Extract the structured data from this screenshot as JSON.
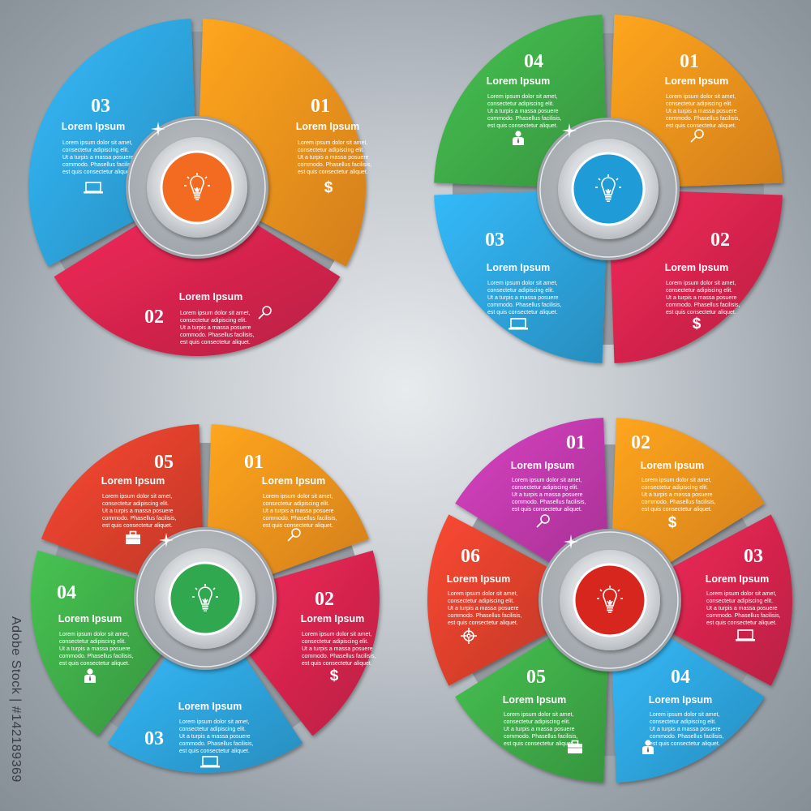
{
  "colors": {
    "orange": "#f7941d",
    "pink": "#d8254f",
    "blue": "#2ea6df",
    "green": "#3fae49",
    "red": "#e0412d",
    "purple": "#c23aad",
    "hub_orange": "#f26b21",
    "hub_blue": "#1f9bd7",
    "hub_green": "#2fa84f",
    "hub_red": "#d7261e"
  },
  "diagrams": [
    {
      "hub_icon": "light-bulb-icon",
      "segments": [
        {
          "number": "01",
          "title": "Lorem Ipsum",
          "text": [
            "Lorem ipsum dolor sit amet,",
            "consectetur adipiscing elit.",
            "Ut a turpis a massa posuere",
            "commodo. Phasellus facilisis,",
            "est quis consectetur aliquet."
          ],
          "icon": "dollar-icon",
          "color": "orange"
        },
        {
          "number": "02",
          "title": "Lorem Ipsum",
          "text": [
            "Lorem ipsum dolor sit amet,",
            "consectetur adipiscing elit.",
            "Ut a turpis a massa posuere",
            "commodo. Phasellus facilisis,",
            "est quis consectetur aliquet."
          ],
          "icon": "magnifier-icon",
          "color": "pink"
        },
        {
          "number": "03",
          "title": "Lorem Ipsum",
          "text": [
            "Lorem ipsum dolor sit amet,",
            "consectetur adipiscing elit.",
            "Ut a turpis a massa posuere",
            "commodo. Phasellus facilisis,",
            "est quis consectetur aliquet."
          ],
          "icon": "laptop-icon",
          "color": "blue"
        }
      ]
    },
    {
      "hub_icon": "light-bulb-icon",
      "segments": [
        {
          "number": "01",
          "title": "Lorem Ipsum",
          "text": [
            "Lorem ipsum dolor sit amet,",
            "consectetur adipiscing elit.",
            "Ut a turpis a massa posuere",
            "commodo. Phasellus facilisis,",
            "est quis consectetur aliquet."
          ],
          "icon": "magnifier-icon",
          "color": "orange"
        },
        {
          "number": "02",
          "title": "Lorem Ipsum",
          "text": [
            "Lorem ipsum dolor sit amet,",
            "consectetur adipiscing elit.",
            "Ut a turpis a massa posuere",
            "commodo. Phasellus facilisis,",
            "est quis consectetur aliquet."
          ],
          "icon": "dollar-icon",
          "color": "pink"
        },
        {
          "number": "03",
          "title": "Lorem Ipsum",
          "text": [
            "Lorem ipsum dolor sit amet,",
            "consectetur adipiscing elit.",
            "Ut a turpis a massa posuere",
            "commodo. Phasellus facilisis,",
            "est quis consectetur aliquet."
          ],
          "icon": "laptop-icon",
          "color": "blue"
        },
        {
          "number": "04",
          "title": "Lorem Ipsum",
          "text": [
            "Lorem ipsum dolor sit amet,",
            "consectetur adipiscing elit.",
            "Ut a turpis a massa posuere",
            "commodo. Phasellus facilisis,",
            "est quis consectetur aliquet."
          ],
          "icon": "person-icon",
          "color": "green"
        }
      ]
    },
    {
      "hub_icon": "light-bulb-icon",
      "segments": [
        {
          "number": "01",
          "title": "Lorem Ipsum",
          "text": [
            "Lorem ipsum dolor sit amet,",
            "consectetur adipiscing elit.",
            "Ut a turpis a massa posuere",
            "commodo. Phasellus facilisis,",
            "est quis consectetur aliquet."
          ],
          "icon": "magnifier-icon",
          "color": "orange"
        },
        {
          "number": "02",
          "title": "Lorem Ipsum",
          "text": [
            "Lorem ipsum dolor sit amet,",
            "consectetur adipiscing elit.",
            "Ut a turpis a massa posuere",
            "commodo. Phasellus facilisis,",
            "est quis consectetur aliquet."
          ],
          "icon": "dollar-icon",
          "color": "pink"
        },
        {
          "number": "03",
          "title": "Lorem Ipsum",
          "text": [
            "Lorem ipsum dolor sit amet,",
            "consectetur adipiscing elit.",
            "Ut a turpis a massa posuere",
            "commodo. Phasellus facilisis,",
            "est quis consectetur aliquet."
          ],
          "icon": "laptop-icon",
          "color": "blue"
        },
        {
          "number": "04",
          "title": "Lorem Ipsum",
          "text": [
            "Lorem ipsum dolor sit amet,",
            "consectetur adipiscing elit.",
            "Ut a turpis a massa posuere",
            "commodo. Phasellus facilisis,",
            "est quis consectetur aliquet."
          ],
          "icon": "person-icon",
          "color": "green"
        },
        {
          "number": "05",
          "title": "Lorem Ipsum",
          "text": [
            "Lorem ipsum dolor sit amet,",
            "consectetur adipiscing elit.",
            "Ut a turpis a massa posuere",
            "commodo. Phasellus facilisis,",
            "est quis consectetur aliquet."
          ],
          "icon": "briefcase-icon",
          "color": "red"
        }
      ]
    },
    {
      "hub_icon": "light-bulb-icon",
      "segments": [
        {
          "number": "01",
          "title": "Lorem Ipsum",
          "text": [
            "Lorem ipsum dolor sit amet,",
            "consectetur adipiscing elit.",
            "Ut a turpis a massa posuere",
            "commodo. Phasellus facilisis,",
            "est quis consectetur aliquet."
          ],
          "icon": "magnifier-icon",
          "color": "purple"
        },
        {
          "number": "02",
          "title": "Lorem Ipsum",
          "text": [
            "Lorem ipsum dolor sit amet,",
            "consectetur adipiscing elit.",
            "Ut a turpis a massa posuere",
            "commodo. Phasellus facilisis,",
            "est quis consectetur aliquet."
          ],
          "icon": "dollar-icon",
          "color": "orange"
        },
        {
          "number": "03",
          "title": "Lorem Ipsum",
          "text": [
            "Lorem ipsum dolor sit amet,",
            "consectetur adipiscing elit.",
            "Ut a turpis a massa posuere",
            "commodo. Phasellus facilisis,",
            "est quis consectetur aliquet."
          ],
          "icon": "laptop-icon",
          "color": "pink"
        },
        {
          "number": "04",
          "title": "Lorem Ipsum",
          "text": [
            "Lorem ipsum dolor sit amet,",
            "consectetur adipiscing elit.",
            "Ut a turpis a massa posuere",
            "commodo. Phasellus facilisis,",
            "est quis consectetur aliquet."
          ],
          "icon": "person-icon",
          "color": "blue"
        },
        {
          "number": "05",
          "title": "Lorem Ipsum",
          "text": [
            "Lorem ipsum dolor sit amet,",
            "consectetur adipiscing elit.",
            "Ut a turpis a massa posuere",
            "commodo. Phasellus facilisis,",
            "est quis consectetur aliquet."
          ],
          "icon": "briefcase-icon",
          "color": "green"
        },
        {
          "number": "06",
          "title": "Lorem Ipsum",
          "text": [
            "Lorem ipsum dolor sit amet,",
            "consectetur adipiscing elit.",
            "Ut a turpis a massa posuere",
            "commodo. Phasellus facilisis,",
            "est quis consectetur aliquet."
          ],
          "icon": "target-icon",
          "color": "red"
        }
      ]
    }
  ],
  "watermark": "Adobe Stock | #142189369"
}
